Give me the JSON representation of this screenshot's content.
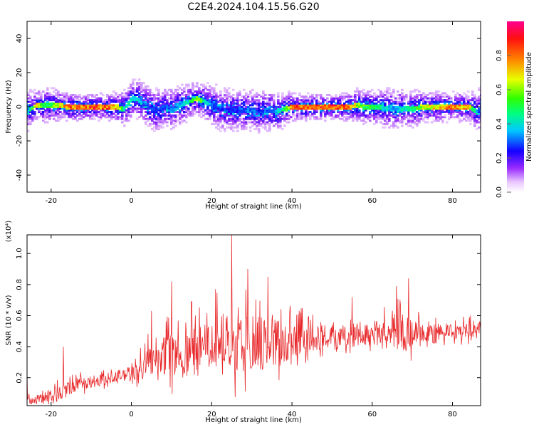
{
  "title": "C2E4.2024.104.15.56.G20",
  "chart_data": [
    {
      "type": "heatmap",
      "xlabel": "Height of straight line (km)",
      "ylabel": "Frequency (Hz)",
      "xlim": [
        -26,
        87
      ],
      "ylim": [
        -50,
        50
      ],
      "x_ticks": [
        -20,
        0,
        20,
        40,
        60,
        80
      ],
      "y_ticks": [
        -40,
        -20,
        0,
        20,
        40
      ],
      "colorbar": {
        "label": "Normalized spectral amplitude",
        "range": [
          0,
          1
        ],
        "ticks": [
          0.0,
          0.2,
          0.4,
          0.6,
          0.8
        ]
      },
      "ridge": {
        "x": [
          -26,
          -24,
          -22,
          -20,
          -18,
          -16,
          -14,
          -10,
          -6,
          -4,
          -2,
          0,
          2,
          4,
          6,
          8,
          10,
          12,
          14,
          16,
          18,
          20,
          22,
          24,
          26,
          28,
          30,
          32,
          34,
          36,
          38,
          40,
          44,
          50,
          54,
          56,
          58,
          60,
          62,
          64,
          66,
          68,
          70,
          72,
          76,
          80,
          84,
          86,
          87
        ],
        "frequency_hz": [
          -2,
          1,
          1,
          1,
          1,
          0,
          0,
          0,
          0,
          0,
          -1,
          5,
          4,
          0,
          -2,
          0,
          -1,
          1,
          3,
          5,
          3,
          1,
          -1,
          -2,
          -2,
          -2,
          -2,
          -3,
          -2,
          -3,
          -1,
          0,
          0,
          0,
          0,
          1,
          0,
          0,
          0,
          -1,
          -1,
          -1,
          -1,
          0,
          0,
          0,
          0,
          -3,
          1
        ],
        "peak_amplitude": [
          0.4,
          0.8,
          0.6,
          0.6,
          0.8,
          0.9,
          0.9,
          0.95,
          0.9,
          0.8,
          0.5,
          0.5,
          0.4,
          0.3,
          0.3,
          0.35,
          0.35,
          0.4,
          0.5,
          0.7,
          0.5,
          0.3,
          0.3,
          0.3,
          0.3,
          0.35,
          0.35,
          0.3,
          0.35,
          0.4,
          0.6,
          0.9,
          0.95,
          0.95,
          0.9,
          0.7,
          0.6,
          0.6,
          0.5,
          0.4,
          0.4,
          0.5,
          0.5,
          0.7,
          0.8,
          0.9,
          0.8,
          0.3,
          0.3
        ]
      }
    },
    {
      "type": "line",
      "xlabel": "Height of straight line (km)",
      "ylabel": "SNR (10 * v/v)",
      "y_multiplier": "(x10⁴)",
      "xlim": [
        -26,
        87
      ],
      "ylim": [
        0.02,
        1.12
      ],
      "x_ticks": [
        -20,
        0,
        20,
        40,
        60,
        80
      ],
      "y_ticks": [
        0.2,
        0.4,
        0.6,
        0.8,
        1.0
      ],
      "series": [
        {
          "color": "#e8282a",
          "envelope_x": [
            -26,
            -24,
            -20,
            -16,
            -12,
            -8,
            -4,
            0,
            4,
            8,
            12,
            16,
            20,
            24,
            28,
            32,
            36,
            40,
            44,
            48,
            52,
            56,
            60,
            64,
            68,
            72,
            76,
            80,
            84,
            87
          ],
          "baseline": [
            0.05,
            0.06,
            0.08,
            0.12,
            0.16,
            0.18,
            0.2,
            0.22,
            0.28,
            0.32,
            0.33,
            0.34,
            0.38,
            0.4,
            0.4,
            0.4,
            0.4,
            0.42,
            0.44,
            0.45,
            0.46,
            0.47,
            0.48,
            0.48,
            0.48,
            0.48,
            0.48,
            0.49,
            0.5,
            0.52
          ],
          "spread": [
            0.08,
            0.06,
            0.1,
            0.12,
            0.1,
            0.1,
            0.1,
            0.12,
            0.25,
            0.35,
            0.3,
            0.4,
            0.45,
            0.55,
            0.45,
            0.45,
            0.4,
            0.3,
            0.22,
            0.2,
            0.18,
            0.2,
            0.2,
            0.22,
            0.3,
            0.15,
            0.12,
            0.12,
            0.12,
            0.1
          ],
          "peaks": [
            {
              "x": -26,
              "y": 0.24
            },
            {
              "x": -17,
              "y": 0.4
            },
            {
              "x": 5,
              "y": 0.63
            },
            {
              "x": 10,
              "y": 0.82
            },
            {
              "x": 15,
              "y": 0.69
            },
            {
              "x": 21,
              "y": 0.77
            },
            {
              "x": 25,
              "y": 1.12
            },
            {
              "x": 29,
              "y": 0.9
            },
            {
              "x": 34,
              "y": 0.85
            },
            {
              "x": 42,
              "y": 0.62
            },
            {
              "x": 55,
              "y": 0.72
            },
            {
              "x": 66,
              "y": 0.79
            },
            {
              "x": 69,
              "y": 0.84
            }
          ]
        }
      ]
    }
  ]
}
